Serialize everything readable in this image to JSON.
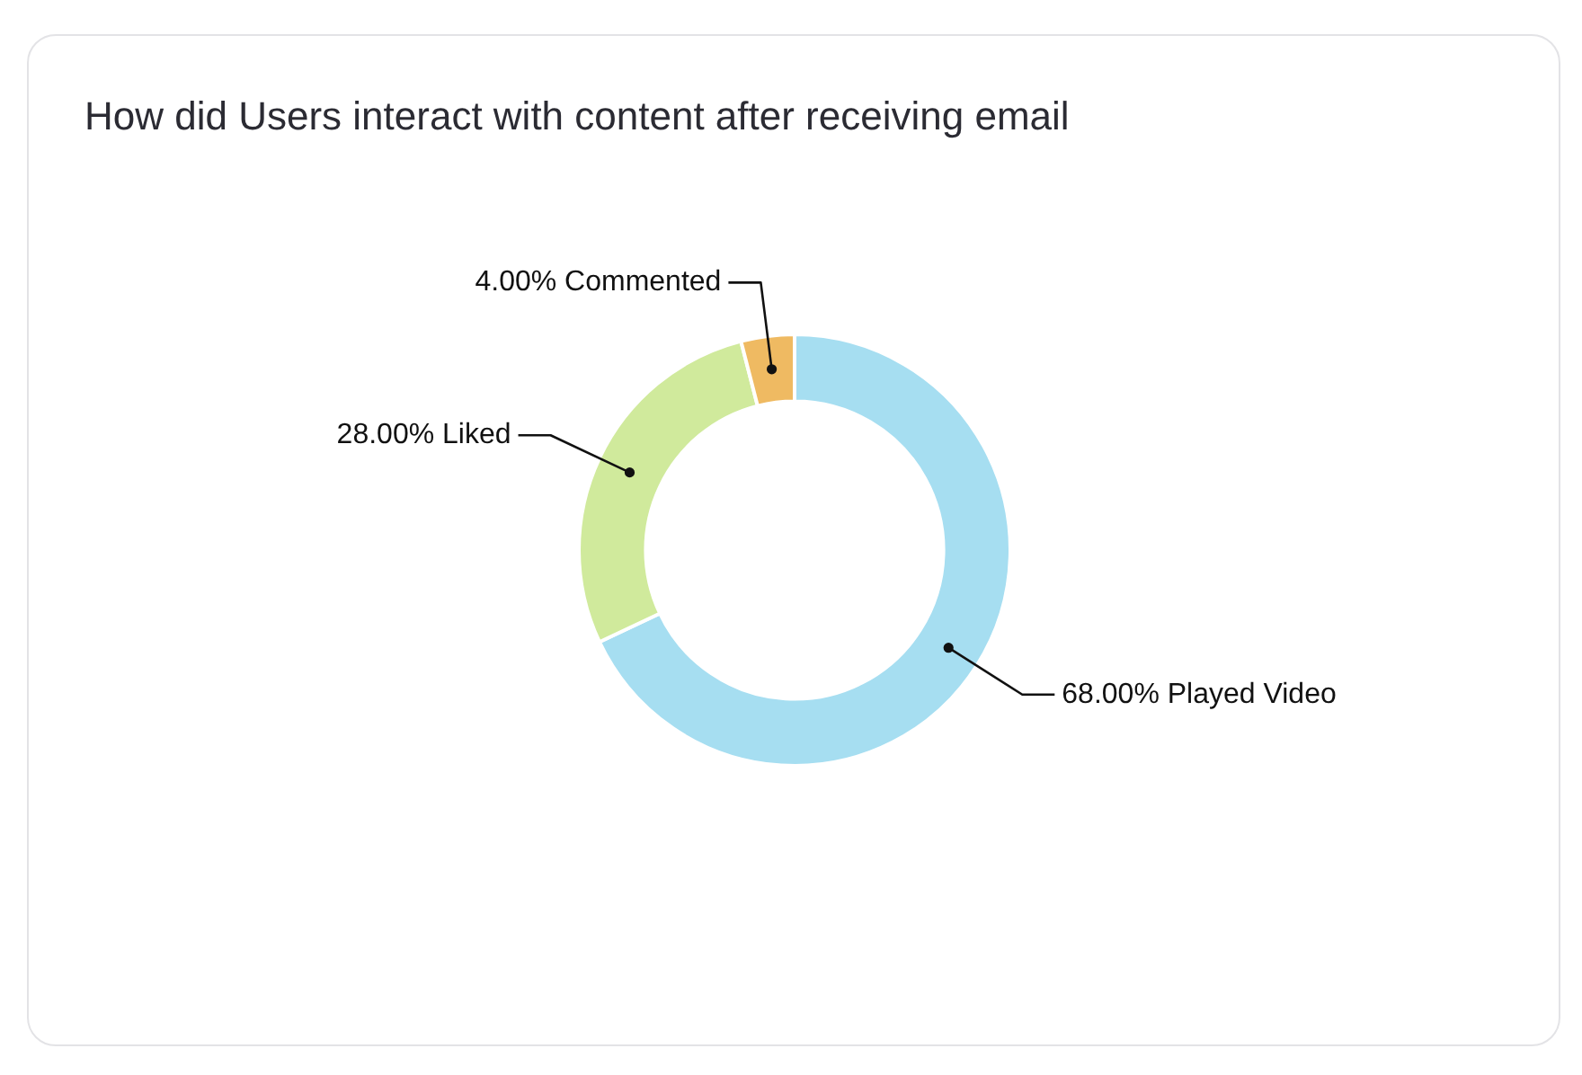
{
  "chart_data": {
    "type": "donut",
    "title": "How did Users interact with content after receiving email",
    "categories": [
      "Played Video",
      "Liked",
      "Commented"
    ],
    "values": [
      68,
      28,
      4
    ],
    "colors": [
      "#a6def1",
      "#d0ea9c",
      "#efba62"
    ],
    "value_labels": [
      "68.00%",
      "28.00%",
      "4.00%"
    ],
    "legend": false
  }
}
